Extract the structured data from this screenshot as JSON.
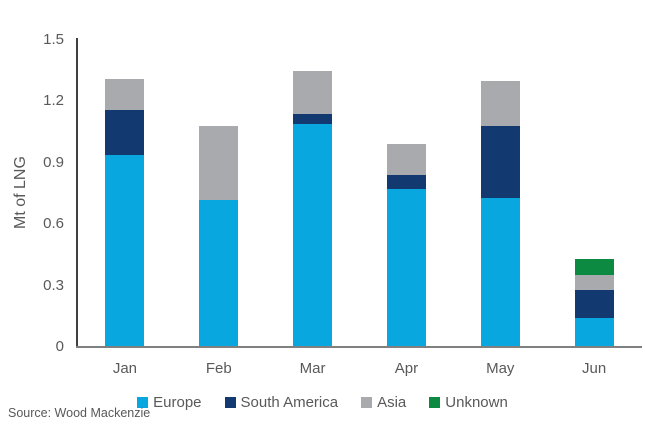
{
  "chart_data": {
    "type": "bar",
    "stacked": true,
    "title": "",
    "xlabel": "",
    "ylabel": "Mt of LNG",
    "categories": [
      "Jan",
      "Feb",
      "Mar",
      "Apr",
      "May",
      "Jun"
    ],
    "series": [
      {
        "name": "Europe",
        "color": "#09A7E0",
        "values": [
          0.94,
          0.72,
          1.09,
          0.77,
          0.73,
          0.14
        ]
      },
      {
        "name": "South America",
        "color": "#133A70",
        "values": [
          0.22,
          0,
          0.05,
          0.07,
          0.35,
          0.14
        ]
      },
      {
        "name": "Asia",
        "color": "#A8AAAD",
        "values": [
          0.15,
          0.36,
          0.21,
          0.15,
          0.22,
          0.07
        ]
      },
      {
        "name": "Unknown",
        "color": "#0C8A42",
        "values": [
          0,
          0,
          0,
          0,
          0,
          0.08
        ]
      }
    ],
    "stack_totals": [
      1.31,
      1.08,
      1.35,
      0.99,
      1.3,
      0.43
    ],
    "ylim": [
      0,
      1.5
    ],
    "yticks": [
      0,
      0.3,
      0.6,
      0.9,
      1.2,
      1.5
    ],
    "ytick_labels": [
      "0",
      "0.3",
      "0.6",
      "0.9",
      "1.2",
      "1.5"
    ],
    "grid": false,
    "legend_position": "bottom"
  },
  "source_note": "Source: Wood Mackenzie",
  "colors": {
    "y_axis_line": "#404040",
    "x_axis_line": "#808080",
    "text": "#595959",
    "background": "#ffffff"
  }
}
